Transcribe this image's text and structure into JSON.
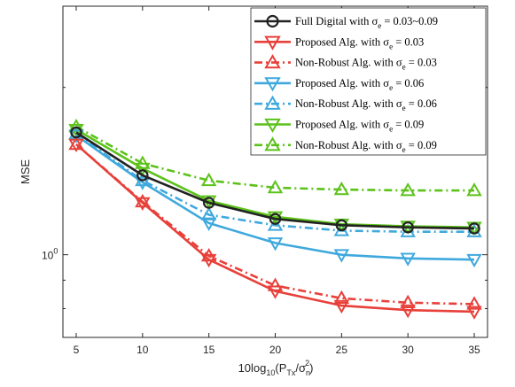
{
  "chart_data": {
    "type": "line",
    "title": "",
    "xlabel_parts": {
      "a": "10log",
      "b": "10",
      "c": "(P",
      "d": "Tx",
      "e": "/σ",
      "f": "n",
      "g": "2",
      "h": ")"
    },
    "ylabel": "MSE",
    "y_scale": "log",
    "xlim": [
      4,
      36
    ],
    "ylim": [
      0.71,
      2.8
    ],
    "x": [
      5,
      10,
      15,
      20,
      25,
      30,
      35
    ],
    "x_ticks": [
      "5",
      "10",
      "15",
      "20",
      "25",
      "30",
      "35"
    ],
    "y_ticks": [
      {
        "value": 1.0,
        "label": "10",
        "exp": "0"
      }
    ],
    "grid": false,
    "legend_position": "top-right",
    "series": [
      {
        "name_prefix": "Full Digital with σ",
        "name_sub": "e",
        "name_suffix": " = 0.03~0.09",
        "color": "#222222",
        "dash": "solid",
        "marker": "circle",
        "values": [
          1.66,
          1.39,
          1.24,
          1.16,
          1.13,
          1.12,
          1.115
        ]
      },
      {
        "name_prefix": "Proposed Alg. with σ",
        "name_sub": "e",
        "name_suffix": " = 0.03",
        "color": "#e8403a",
        "dash": "solid",
        "marker": "triangle-down",
        "values": [
          1.58,
          1.24,
          0.98,
          0.86,
          0.81,
          0.795,
          0.79
        ]
      },
      {
        "name_prefix": "Non-Robust Alg. with σ",
        "name_sub": "e",
        "name_suffix": " = 0.03",
        "color": "#e8403a",
        "dash": "dashdot",
        "marker": "triangle-up",
        "values": [
          1.58,
          1.245,
          0.995,
          0.88,
          0.835,
          0.82,
          0.815
        ]
      },
      {
        "name_prefix": "Proposed Alg. with σ",
        "name_sub": "e",
        "name_suffix": " = 0.06",
        "color": "#3fa9dd",
        "dash": "solid",
        "marker": "triangle-down",
        "values": [
          1.64,
          1.35,
          1.14,
          1.05,
          1.0,
          0.985,
          0.98
        ]
      },
      {
        "name_prefix": "Non-Robust Alg. with σ",
        "name_sub": "e",
        "name_suffix": " = 0.06",
        "color": "#3fa9dd",
        "dash": "dashdot",
        "marker": "triangle-up",
        "values": [
          1.65,
          1.36,
          1.18,
          1.13,
          1.105,
          1.1,
          1.1
        ]
      },
      {
        "name_prefix": "Proposed Alg. with σ",
        "name_sub": "e",
        "name_suffix": " = 0.09",
        "color": "#5cc21a",
        "dash": "solid",
        "marker": "triangle-down",
        "values": [
          1.68,
          1.43,
          1.25,
          1.17,
          1.135,
          1.125,
          1.12
        ]
      },
      {
        "name_prefix": "Non-Robust Alg. with σ",
        "name_sub": "e",
        "name_suffix": " = 0.09",
        "color": "#5cc21a",
        "dash": "dashdot",
        "marker": "triangle-up",
        "values": [
          1.7,
          1.46,
          1.36,
          1.32,
          1.31,
          1.305,
          1.305
        ]
      }
    ]
  }
}
